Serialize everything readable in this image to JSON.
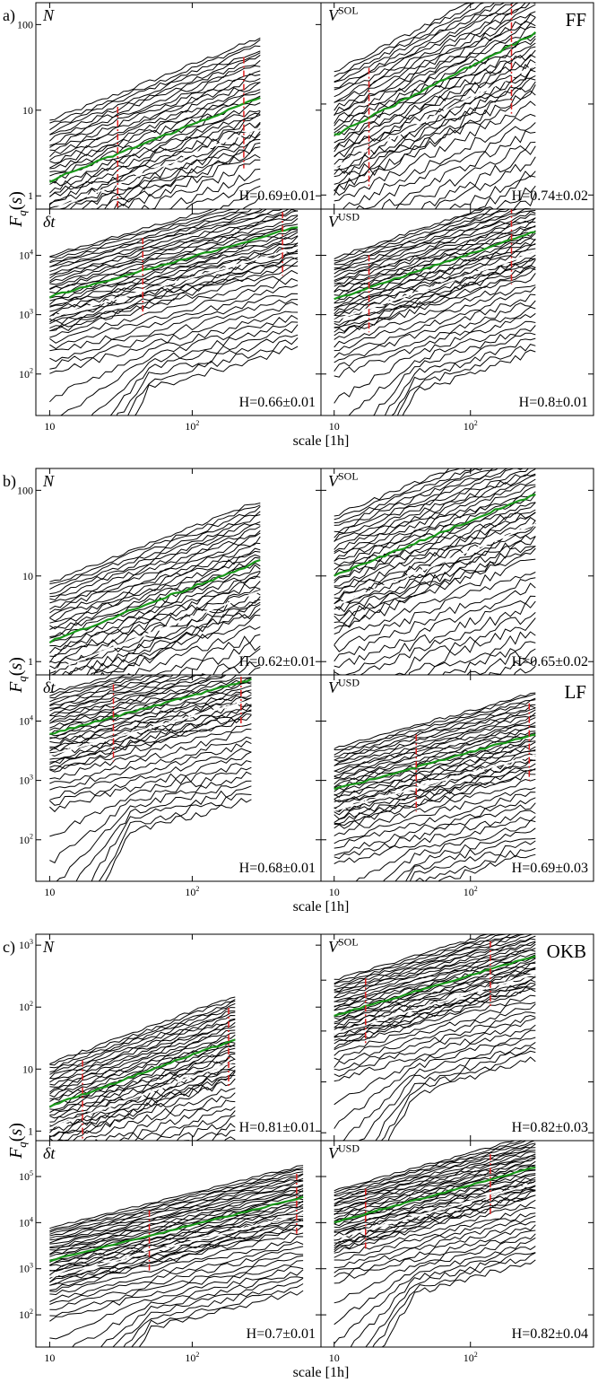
{
  "chart_data": [
    {
      "type": "line",
      "group_label": "a)",
      "dataset_label": "FF",
      "ylabel": "F_q(s)",
      "xlabel": "scale [1h]",
      "x_scale": "log",
      "y_scale": "log",
      "xlim": [
        8,
        800
      ],
      "x_ticks": [
        "10",
        "10^2"
      ],
      "panels": [
        {
          "variable": "N",
          "hurst": "H=0.69±0.01",
          "ylim": [
            0.7,
            180
          ],
          "y_ticks": [
            "1",
            "10",
            "100"
          ],
          "green_line": {
            "x": [
              10,
              300
            ],
            "y": [
              1.5,
              14
            ]
          },
          "red_markers_x": [
            30,
            230
          ]
        },
        {
          "variable": "V^SOL",
          "hurst": "H=0.74±0.02",
          "ylim": [
            7,
            1300
          ],
          "y_ticks": [
            "10",
            "100"
          ],
          "green_line": {
            "x": [
              10,
              300
            ],
            "y": [
              45,
              600
            ]
          },
          "red_markers_x": [
            18,
            200
          ]
        },
        {
          "variable": "δt",
          "hurst": "H=0.66±0.01",
          "ylim": [
            20,
            60000
          ],
          "y_ticks": [
            "10^2",
            "10^3",
            "10^4"
          ],
          "green_line": {
            "x": [
              10,
              550
            ],
            "y": [
              2000,
              30000
            ]
          },
          "red_markers_x": [
            45,
            430
          ]
        },
        {
          "variable": "V^USD",
          "hurst": "H=0.8±0.01",
          "ylim": [
            20,
            60000
          ],
          "y_ticks": [
            "10^2",
            "10^3",
            "10^4"
          ],
          "green_line": {
            "x": [
              10,
              300
            ],
            "y": [
              1800,
              25000
            ]
          },
          "red_markers_x": [
            18,
            200
          ]
        }
      ]
    },
    {
      "type": "line",
      "group_label": "b)",
      "dataset_label": "LF",
      "ylabel": "F_q(s)",
      "xlabel": "scale [1h]",
      "x_scale": "log",
      "y_scale": "log",
      "xlim": [
        8,
        800
      ],
      "x_ticks": [
        "10",
        "10^2"
      ],
      "panels": [
        {
          "variable": "N",
          "hurst": "H=0.62±0.01",
          "ylim": [
            0.7,
            180
          ],
          "y_ticks": [
            "1",
            "10",
            "100"
          ],
          "green_line": {
            "x": [
              10,
              300
            ],
            "y": [
              1.7,
              15
            ]
          },
          "red_markers_x": []
        },
        {
          "variable": "V^SOL",
          "hurst": "H=0.65±0.02",
          "ylim": [
            0.7,
            180
          ],
          "y_ticks": [
            "1",
            "10",
            "100"
          ],
          "green_line": {
            "x": [
              10,
              300
            ],
            "y": [
              10,
              90
            ]
          },
          "red_markers_x": []
        },
        {
          "variable": "δt",
          "hurst": "H=0.68±0.01",
          "ylim": [
            20,
            60000
          ],
          "y_ticks": [
            "10^2",
            "10^3",
            "10^4"
          ],
          "green_line": {
            "x": [
              10,
              260
            ],
            "y": [
              6000,
              50000
            ]
          },
          "red_markers_x": [
            28,
            220
          ]
        },
        {
          "variable": "V^USD",
          "hurst": "H=0.69±0.03",
          "ylim": [
            20,
            60000
          ],
          "y_ticks": [
            "10^2",
            "10^3",
            "10^4"
          ],
          "green_line": {
            "x": [
              10,
              300
            ],
            "y": [
              700,
              6000
            ]
          },
          "red_markers_x": [
            40,
            270
          ]
        }
      ]
    },
    {
      "type": "line",
      "group_label": "c)",
      "dataset_label": "OKB",
      "ylabel": "F_q(s)",
      "xlabel": "scale [1h]",
      "x_scale": "log",
      "y_scale": "log",
      "xlim": [
        8,
        800
      ],
      "x_ticks": [
        "10",
        "10^2"
      ],
      "panels": [
        {
          "variable": "N",
          "hurst": "H=0.81±0.01",
          "ylim": [
            0.7,
            1500
          ],
          "y_ticks": [
            "1",
            "10",
            "10^2",
            "10^3"
          ],
          "green_line": {
            "x": [
              10,
              200
            ],
            "y": [
              2.5,
              30
            ]
          },
          "red_markers_x": [
            17,
            180
          ]
        },
        {
          "variable": "V^SOL",
          "hurst": "H=0.82±0.03",
          "ylim": [
            0.7,
            8000
          ],
          "y_ticks": [
            "1",
            "10",
            "10^2",
            "10^3"
          ],
          "green_line": {
            "x": [
              10,
              300
            ],
            "y": [
              200,
              3000
            ]
          },
          "red_markers_x": [
            17,
            140
          ]
        },
        {
          "variable": "δt",
          "hurst": "H=0.7±0.01",
          "ylim": [
            20,
            600000
          ],
          "y_ticks": [
            "10^2",
            "10^3",
            "10^4",
            "10^5"
          ],
          "green_line": {
            "x": [
              10,
              600
            ],
            "y": [
              1500,
              35000
            ]
          },
          "red_markers_x": [
            50,
            540
          ]
        },
        {
          "variable": "V^USD",
          "hurst": "H=0.82±0.04",
          "ylim": [
            20,
            600000
          ],
          "y_ticks": [
            "10^2",
            "10^3",
            "10^4",
            "10^5"
          ],
          "green_line": {
            "x": [
              10,
              300
            ],
            "y": [
              10000,
              160000
            ]
          },
          "red_markers_x": [
            17,
            140
          ]
        }
      ]
    }
  ]
}
